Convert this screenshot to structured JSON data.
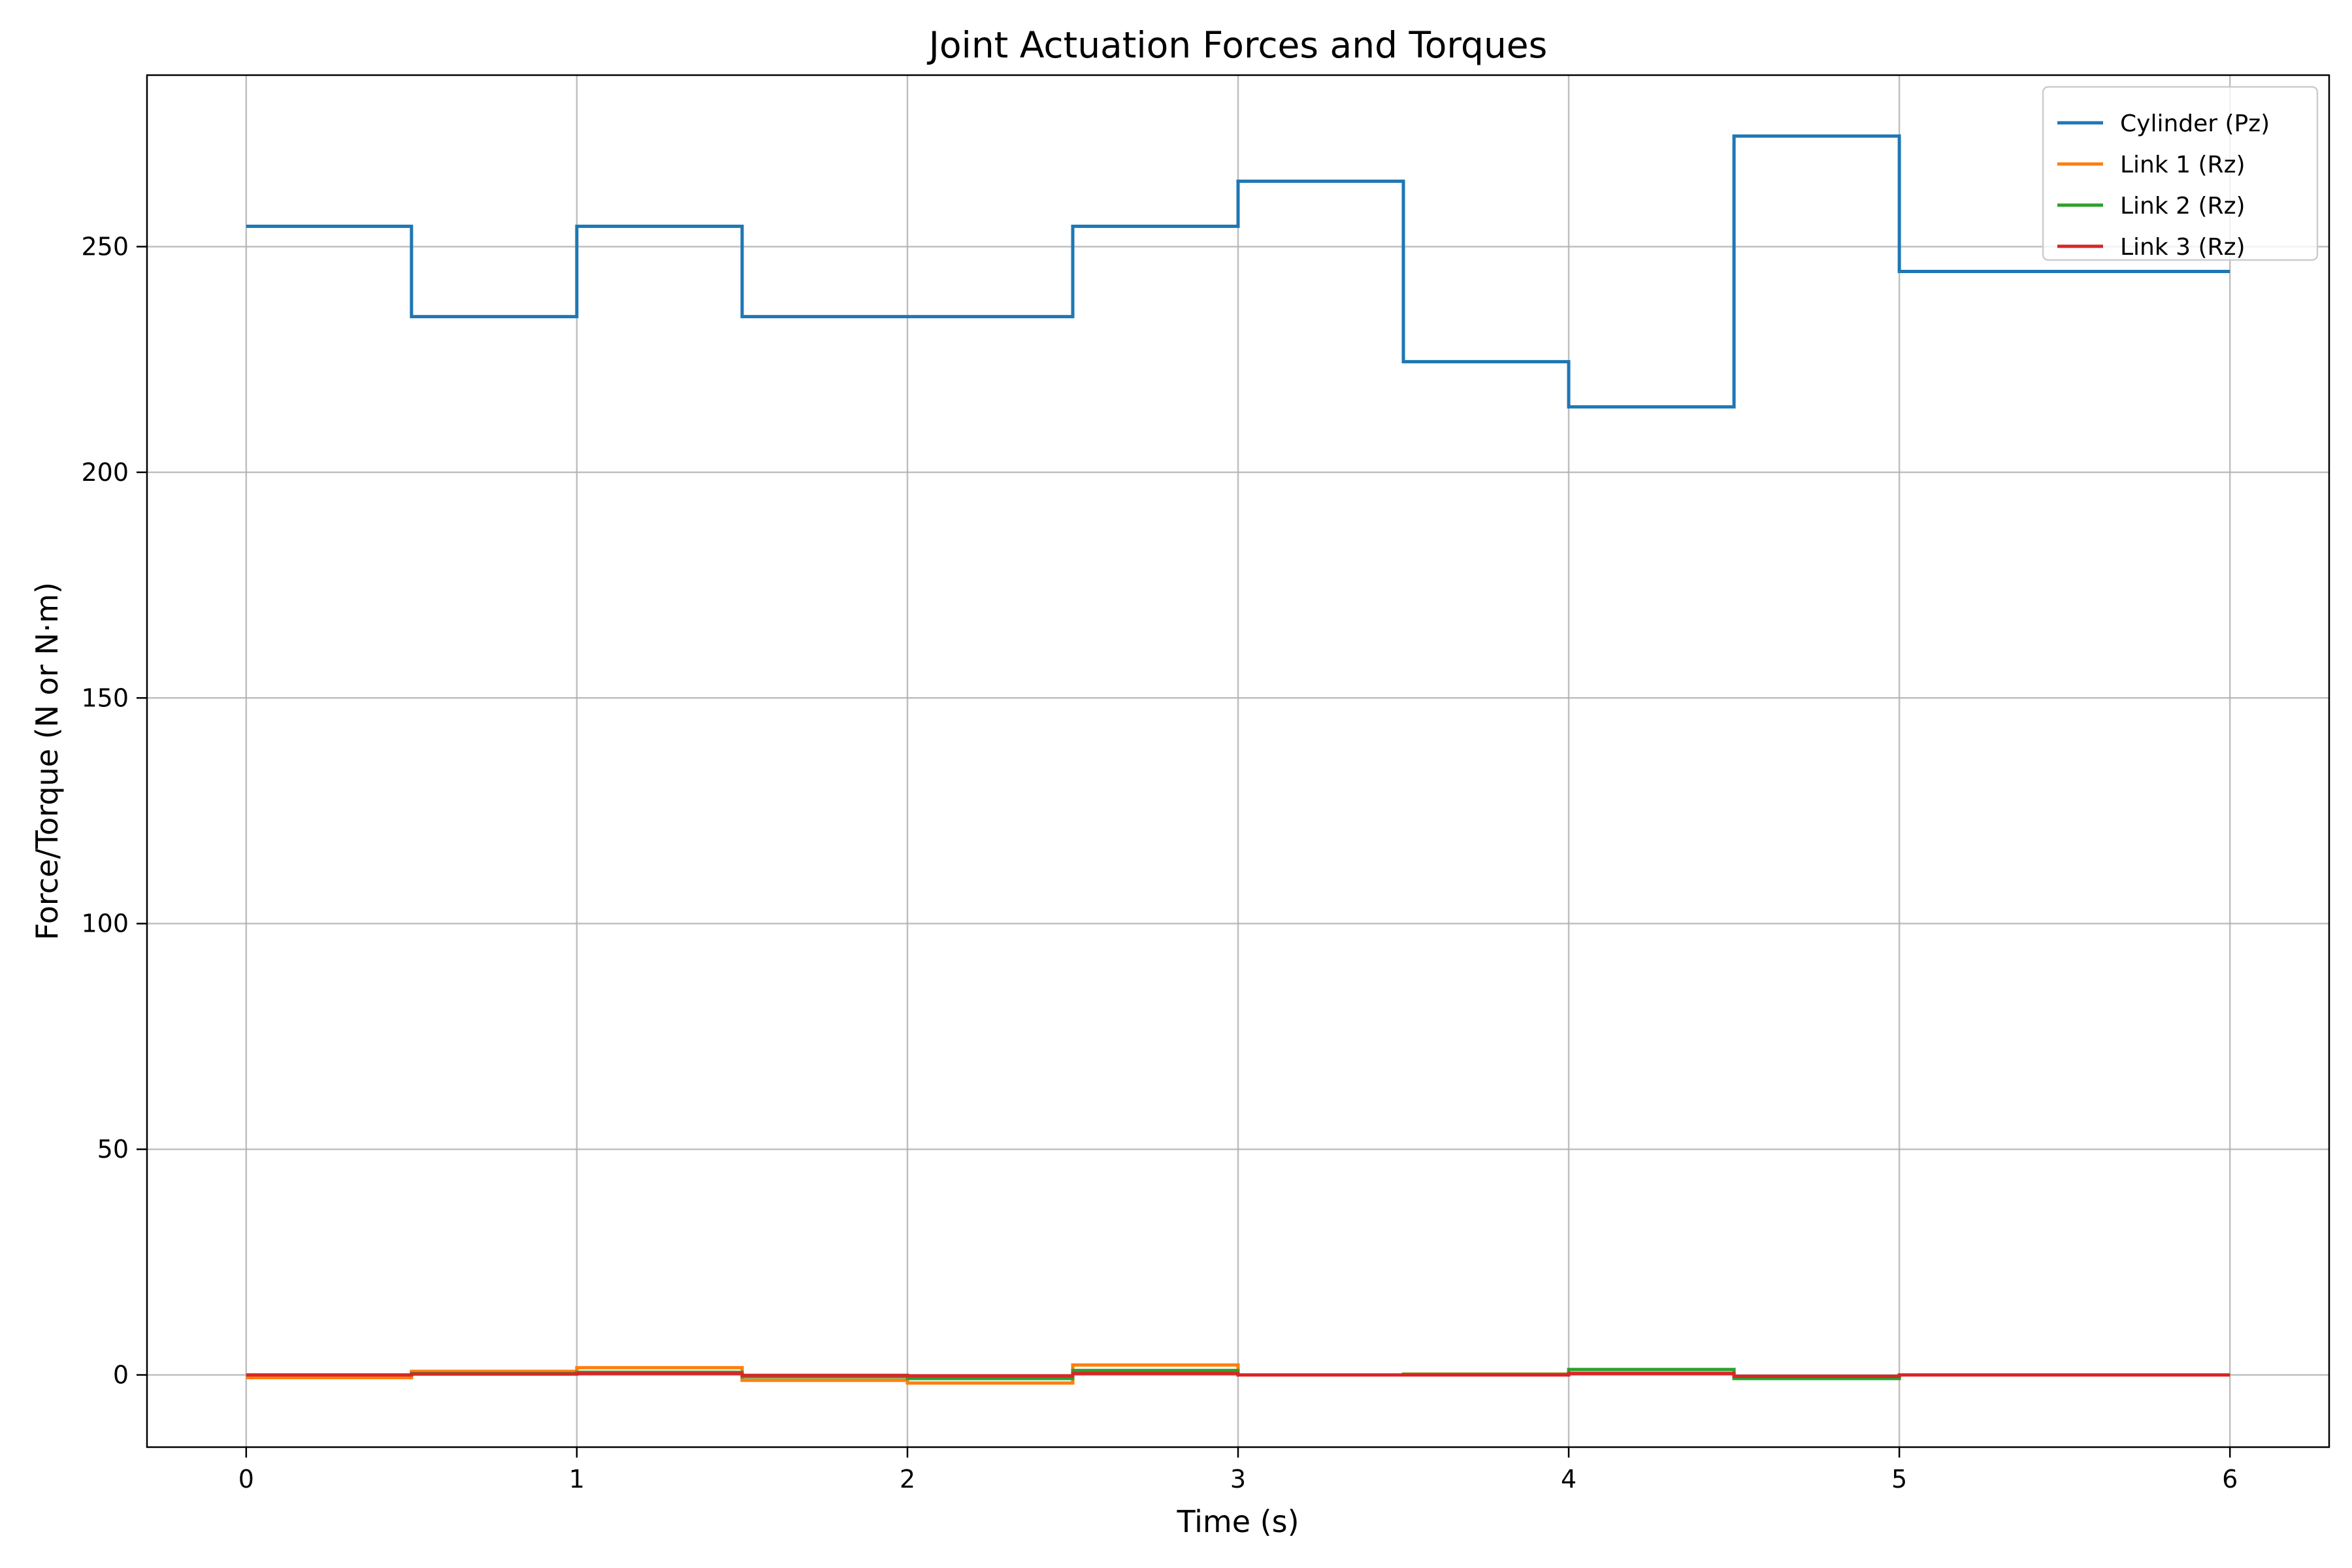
{
  "chart_data": {
    "type": "line",
    "step": "post",
    "title": "Joint Actuation Forces and Torques",
    "xlabel": "Time (s)",
    "ylabel": "Force/Torque (N or N·m)",
    "xlim": [
      -0.3,
      6.3
    ],
    "ylim": [
      -16,
      288
    ],
    "xticks": [
      0,
      1,
      2,
      3,
      4,
      5,
      6
    ],
    "yticks": [
      0,
      50,
      100,
      150,
      200,
      250
    ],
    "grid": true,
    "legend": "top-right",
    "x": [
      0,
      0.5,
      1,
      1.5,
      2,
      2.5,
      3,
      3.5,
      4,
      4.5,
      5,
      6
    ],
    "series": [
      {
        "name": "Cylinder (Pz)",
        "color": "#1f77b4",
        "values": [
          254.5,
          234.5,
          254.5,
          234.5,
          234.5,
          254.5,
          264.5,
          224.5,
          214.5,
          274.5,
          244.5,
          244.5
        ]
      },
      {
        "name": "Link 1 (Rz)",
        "color": "#ff7f0e",
        "values": [
          -0.6,
          0.8,
          1.6,
          -1.2,
          -1.8,
          2.2,
          0,
          0.2,
          0.4,
          -0.5,
          0,
          0
        ]
      },
      {
        "name": "Link 2 (Rz)",
        "color": "#2ca02c",
        "values": [
          0,
          0.3,
          0.6,
          -0.4,
          -0.8,
          1,
          0,
          0.1,
          1.2,
          -0.8,
          0,
          0
        ]
      },
      {
        "name": "Link 3 (Rz)",
        "color": "#d62728",
        "values": [
          0,
          0.2,
          0.3,
          -0.1,
          -0.2,
          0.3,
          0,
          0,
          0.3,
          -0.3,
          0,
          0
        ]
      }
    ]
  }
}
